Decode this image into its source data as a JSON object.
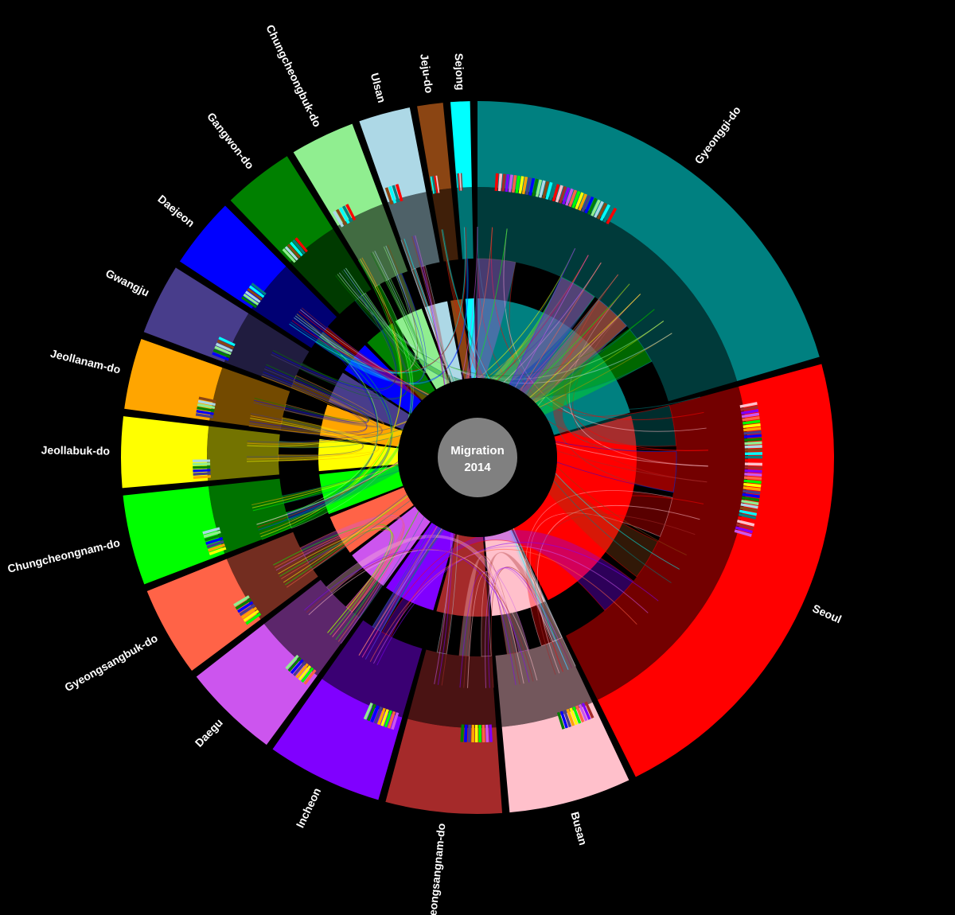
{
  "center": {
    "line1": "Migration",
    "line2": "2014"
  },
  "regions": [
    {
      "name": "Gyeonggi-do",
      "color": "#008080",
      "span": 70
    },
    {
      "name": "Seoul",
      "color": "#ff0000",
      "span": 75
    },
    {
      "name": "Busan",
      "color": "#ffc0cb",
      "span": 19
    },
    {
      "name": "Gyeongsangnam-do",
      "color": "#a52a2a",
      "span": 18
    },
    {
      "name": "Incheon",
      "color": "#8000ff",
      "span": 18
    },
    {
      "name": "Daegu",
      "color": "#cc55ee",
      "span": 15
    },
    {
      "name": "Gyeongsangbuk-do",
      "color": "#ff6347",
      "span": 14
    },
    {
      "name": "Chungcheongnam-do",
      "color": "#00ff00",
      "span": 14
    },
    {
      "name": "Jeollabuk-do",
      "color": "#ffff00",
      "span": 11
    },
    {
      "name": "Jeollanam-do",
      "color": "#ffa500",
      "span": 11
    },
    {
      "name": "Gwangju",
      "color": "#483d8b",
      "span": 11
    },
    {
      "name": "Daejeon",
      "color": "#0000ff",
      "span": 11
    },
    {
      "name": "Gangwon-do",
      "color": "#008000",
      "span": 11
    },
    {
      "name": "Chungcheongbuk-do",
      "color": "#90ee90",
      "span": 10
    },
    {
      "name": "Ulsan",
      "color": "#add8e6",
      "span": 8
    },
    {
      "name": "Jeju-do",
      "color": "#8b4513",
      "span": 4
    },
    {
      "name": "Sejong",
      "color": "#00ffff",
      "span": 3
    }
  ],
  "flows": [
    {
      "from": 0,
      "to": 1,
      "weight": 10
    },
    {
      "from": 1,
      "to": 0,
      "weight": 9
    },
    {
      "from": 1,
      "to": 2,
      "weight": 3
    },
    {
      "from": 0,
      "to": 4,
      "weight": 4
    },
    {
      "from": 2,
      "to": 3,
      "weight": 4
    },
    {
      "from": 3,
      "to": 2,
      "weight": 3
    },
    {
      "from": 5,
      "to": 6,
      "weight": 3
    },
    {
      "from": 6,
      "to": 5,
      "weight": 3
    },
    {
      "from": 7,
      "to": 0,
      "weight": 2
    },
    {
      "from": 8,
      "to": 0,
      "weight": 2
    },
    {
      "from": 9,
      "to": 10,
      "weight": 3
    },
    {
      "from": 10,
      "to": 9,
      "weight": 3
    },
    {
      "from": 11,
      "to": 7,
      "weight": 2
    },
    {
      "from": 12,
      "to": 0,
      "weight": 2
    },
    {
      "from": 13,
      "to": 11,
      "weight": 2
    },
    {
      "from": 14,
      "to": 2,
      "weight": 2
    },
    {
      "from": 15,
      "to": 1,
      "weight": 1
    },
    {
      "from": 16,
      "to": 11,
      "weight": 1
    },
    {
      "from": 4,
      "to": 1,
      "weight": 3
    },
    {
      "from": 3,
      "to": 14,
      "weight": 2
    },
    {
      "from": 5,
      "to": 0,
      "weight": 2
    },
    {
      "from": 6,
      "to": 0,
      "weight": 2
    },
    {
      "from": 8,
      "to": 9,
      "weight": 2
    },
    {
      "from": 10,
      "to": 12,
      "weight": 1
    },
    {
      "from": 12,
      "to": 13,
      "weight": 1
    },
    {
      "from": 7,
      "to": 13,
      "weight": 1
    },
    {
      "from": 1,
      "to": 11,
      "weight": 2
    },
    {
      "from": 0,
      "to": 7,
      "weight": 2
    },
    {
      "from": 2,
      "to": 5,
      "weight": 1
    },
    {
      "from": 4,
      "to": 0,
      "weight": 3
    }
  ]
}
